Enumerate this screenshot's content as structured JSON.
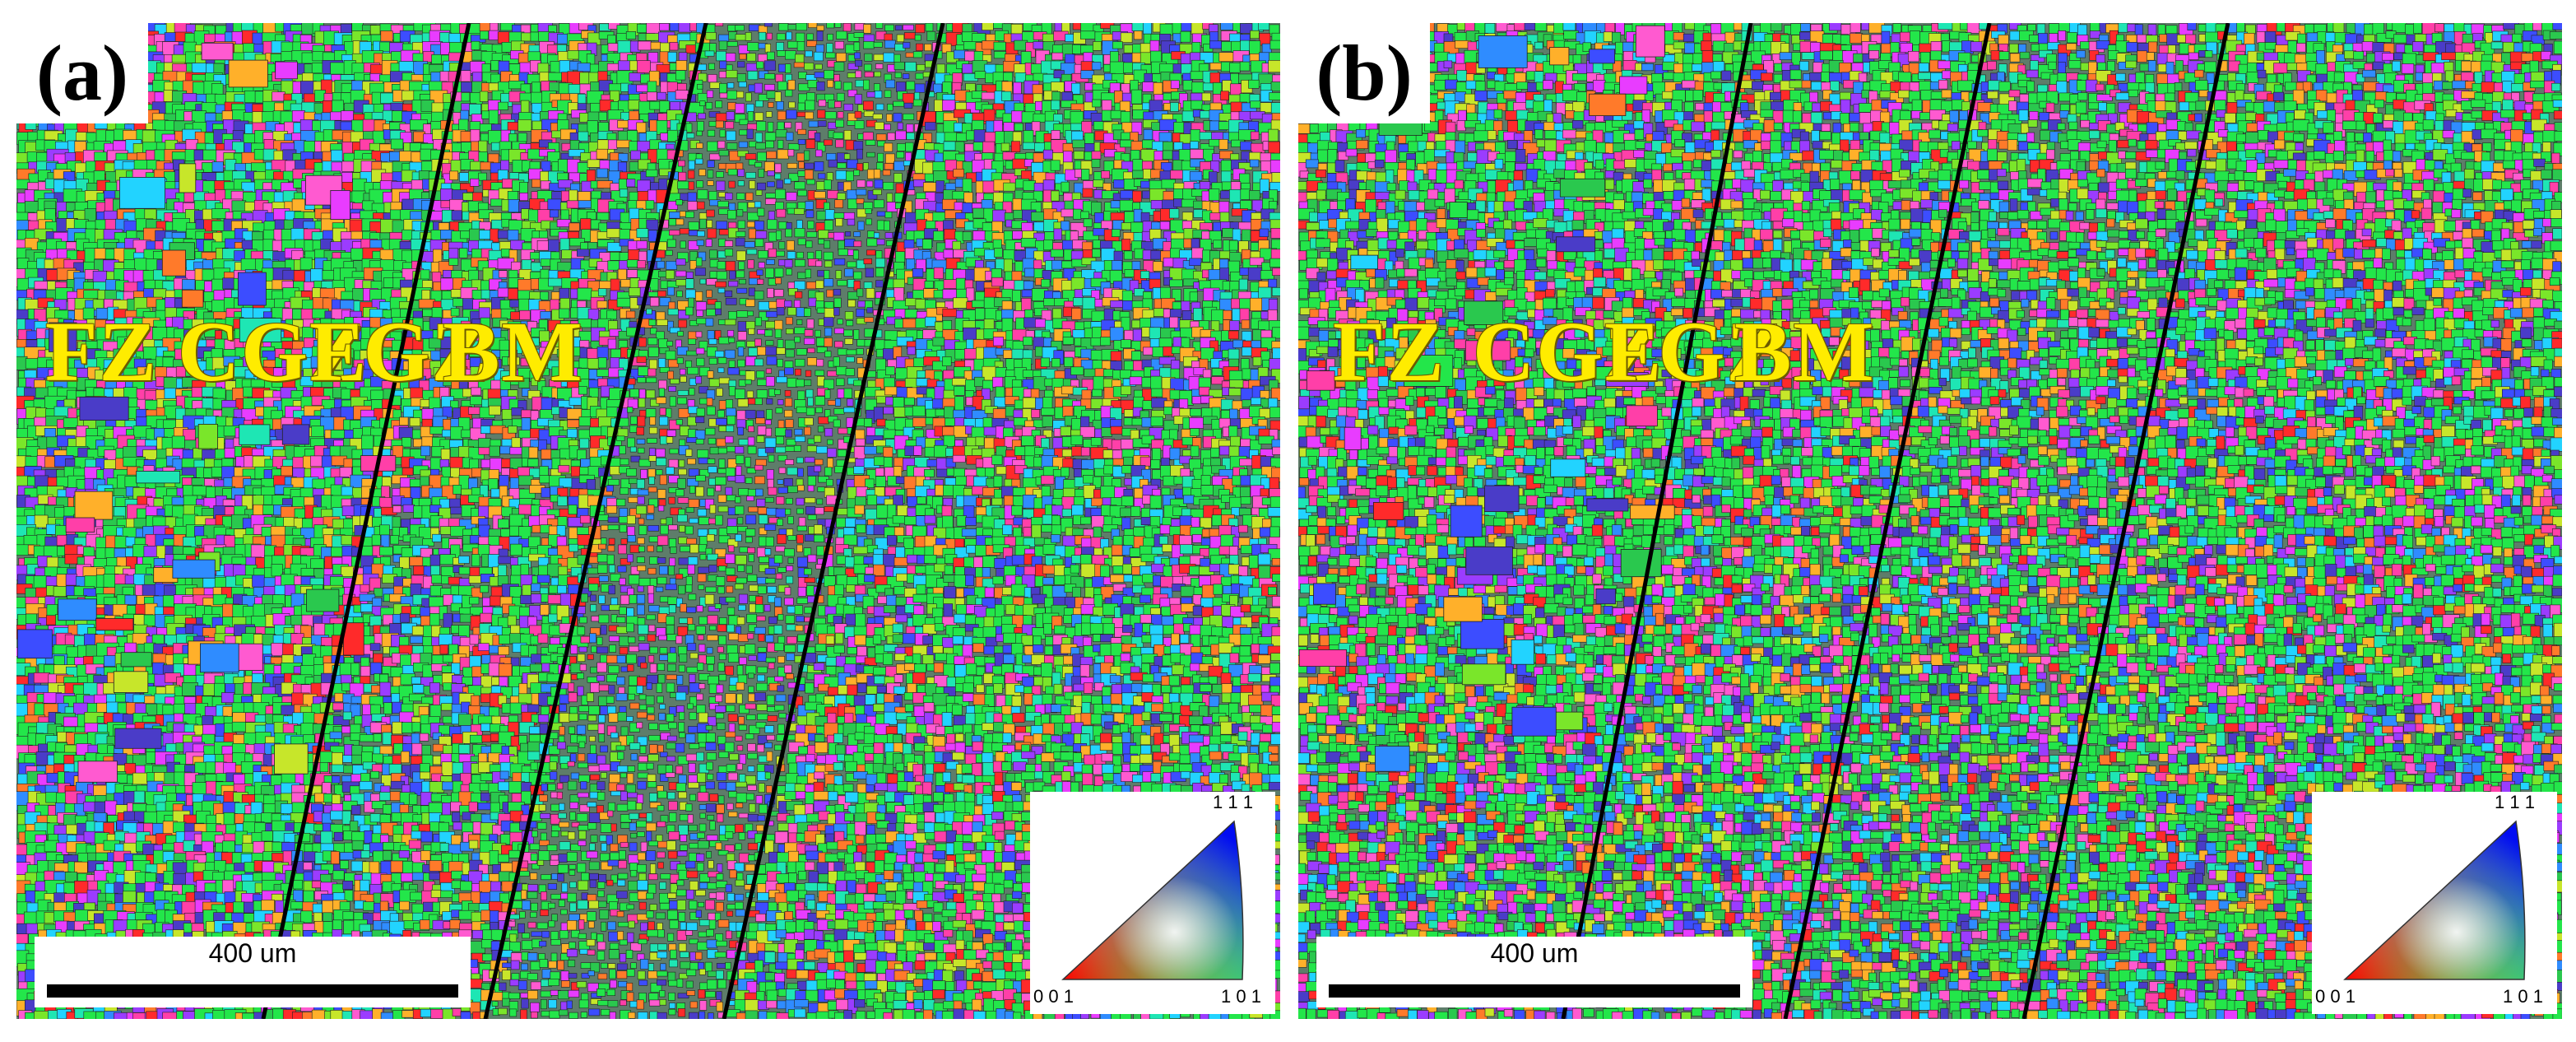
{
  "panels": [
    {
      "id": "a",
      "label": "(a)",
      "zones": [
        "FZ",
        "CGZ",
        "FGZ",
        "BM"
      ],
      "scale_bar": "400 um",
      "legend": {
        "top": "1 1 1",
        "left": "0 0 1",
        "right": "1 0 1"
      }
    },
    {
      "id": "b",
      "label": "(b)",
      "zones": [
        "FZ",
        "CGZ",
        "FGZ",
        "BM"
      ],
      "scale_bar": "400 um",
      "legend": {
        "top": "1 1 1",
        "left": "0 0 1",
        "right": "1 0 1"
      }
    }
  ],
  "colors": {
    "grain_palette": [
      "#ff2a2a",
      "#ff3fa8",
      "#e83cff",
      "#9b3cff",
      "#3c4dff",
      "#2f8cff",
      "#22d3ff",
      "#1ee6b4",
      "#23e64a",
      "#7ae62a",
      "#c7e62a",
      "#ffb02a",
      "#ff7a2a",
      "#ff5ad0",
      "#4a3cc8",
      "#2ac84e"
    ],
    "zone_text": "#ffec00",
    "boundary_line": "#000000"
  }
}
